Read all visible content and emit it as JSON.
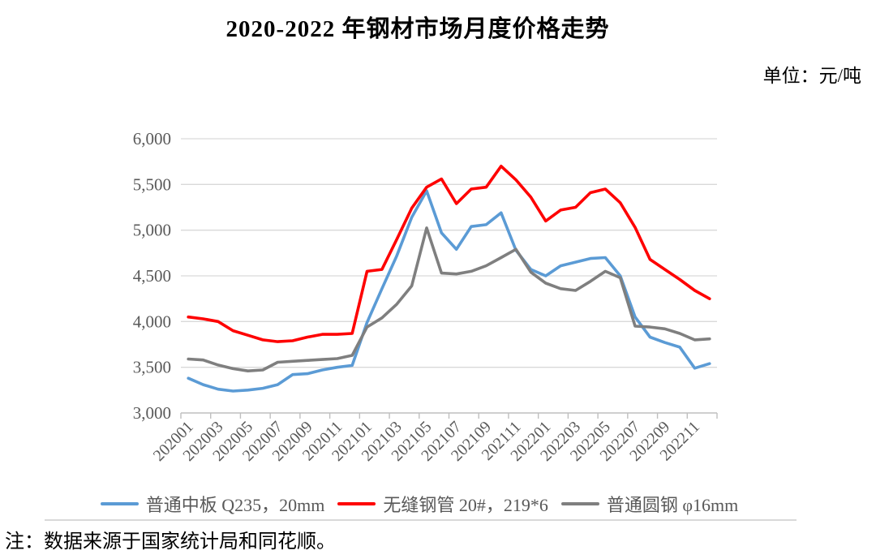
{
  "title": "2020-2022 年钢材市场月度价格走势",
  "unit_label": "单位：元/吨",
  "note": "注：数据来源于国家统计局和同花顺。",
  "colors": {
    "series_blue": "#5b9bd5",
    "series_red": "#fe0000",
    "series_gray": "#7f7f7f",
    "gridline": "#d9d9d9",
    "axis_line": "#bfbfbf",
    "axis_text": "#595959"
  },
  "chart_data": {
    "type": "line",
    "title": "2020-2022 年钢材市场月度价格走势",
    "ylabel": "元/吨",
    "xlabel": "",
    "ylim": [
      3000,
      6000
    ],
    "y_tick_values": [
      3000,
      3500,
      4000,
      4500,
      5000,
      5500,
      6000
    ],
    "y_tick_labels": [
      "3,000",
      "3,500",
      "4,000",
      "4,500",
      "5,000",
      "5,500",
      "6,000"
    ],
    "grid": true,
    "legend_position": "bottom",
    "categories": [
      "202001",
      "202002",
      "202003",
      "202004",
      "202005",
      "202006",
      "202007",
      "202008",
      "202009",
      "202010",
      "202011",
      "202012",
      "202101",
      "202102",
      "202103",
      "202104",
      "202105",
      "202106",
      "202107",
      "202108",
      "202109",
      "202110",
      "202111",
      "202112",
      "202201",
      "202202",
      "202203",
      "202204",
      "202205",
      "202206",
      "202207",
      "202208",
      "202209",
      "202210",
      "202211",
      "202212"
    ],
    "x_tick_labels": [
      "202001",
      "202003",
      "202005",
      "202007",
      "202009",
      "202011",
      "202101",
      "202103",
      "202105",
      "202107",
      "202109",
      "202111",
      "202201",
      "202203",
      "202205",
      "202207",
      "202209",
      "202211"
    ],
    "series": [
      {
        "name": "普通中板 Q235，20mm",
        "color_key": "series_blue",
        "values": [
          3380,
          3310,
          3260,
          3240,
          3250,
          3270,
          3310,
          3420,
          3430,
          3470,
          3500,
          3520,
          3990,
          4360,
          4720,
          5140,
          5430,
          4970,
          4790,
          5040,
          5060,
          5190,
          4780,
          4570,
          4500,
          4610,
          4650,
          4690,
          4700,
          4500,
          4050,
          3830,
          3770,
          3720,
          3490,
          3540
        ]
      },
      {
        "name": "无缝钢管 20#，219*6",
        "color_key": "series_red",
        "values": [
          4050,
          4030,
          4000,
          3900,
          3850,
          3800,
          3780,
          3790,
          3830,
          3860,
          3860,
          3870,
          4550,
          4570,
          4900,
          5240,
          5470,
          5560,
          5290,
          5450,
          5470,
          5700,
          5550,
          5360,
          5100,
          5220,
          5250,
          5410,
          5450,
          5300,
          5030,
          4680,
          4570,
          4460,
          4340,
          4250
        ]
      },
      {
        "name": "普通圆钢 φ16mm",
        "color_key": "series_gray",
        "values": [
          3590,
          3580,
          3525,
          3485,
          3460,
          3470,
          3555,
          3565,
          3575,
          3585,
          3595,
          3630,
          3940,
          4040,
          4190,
          4390,
          5025,
          4530,
          4520,
          4550,
          4610,
          4700,
          4790,
          4540,
          4420,
          4360,
          4340,
          4440,
          4550,
          4480,
          3950,
          3940,
          3920,
          3870,
          3800,
          3810
        ]
      }
    ]
  }
}
